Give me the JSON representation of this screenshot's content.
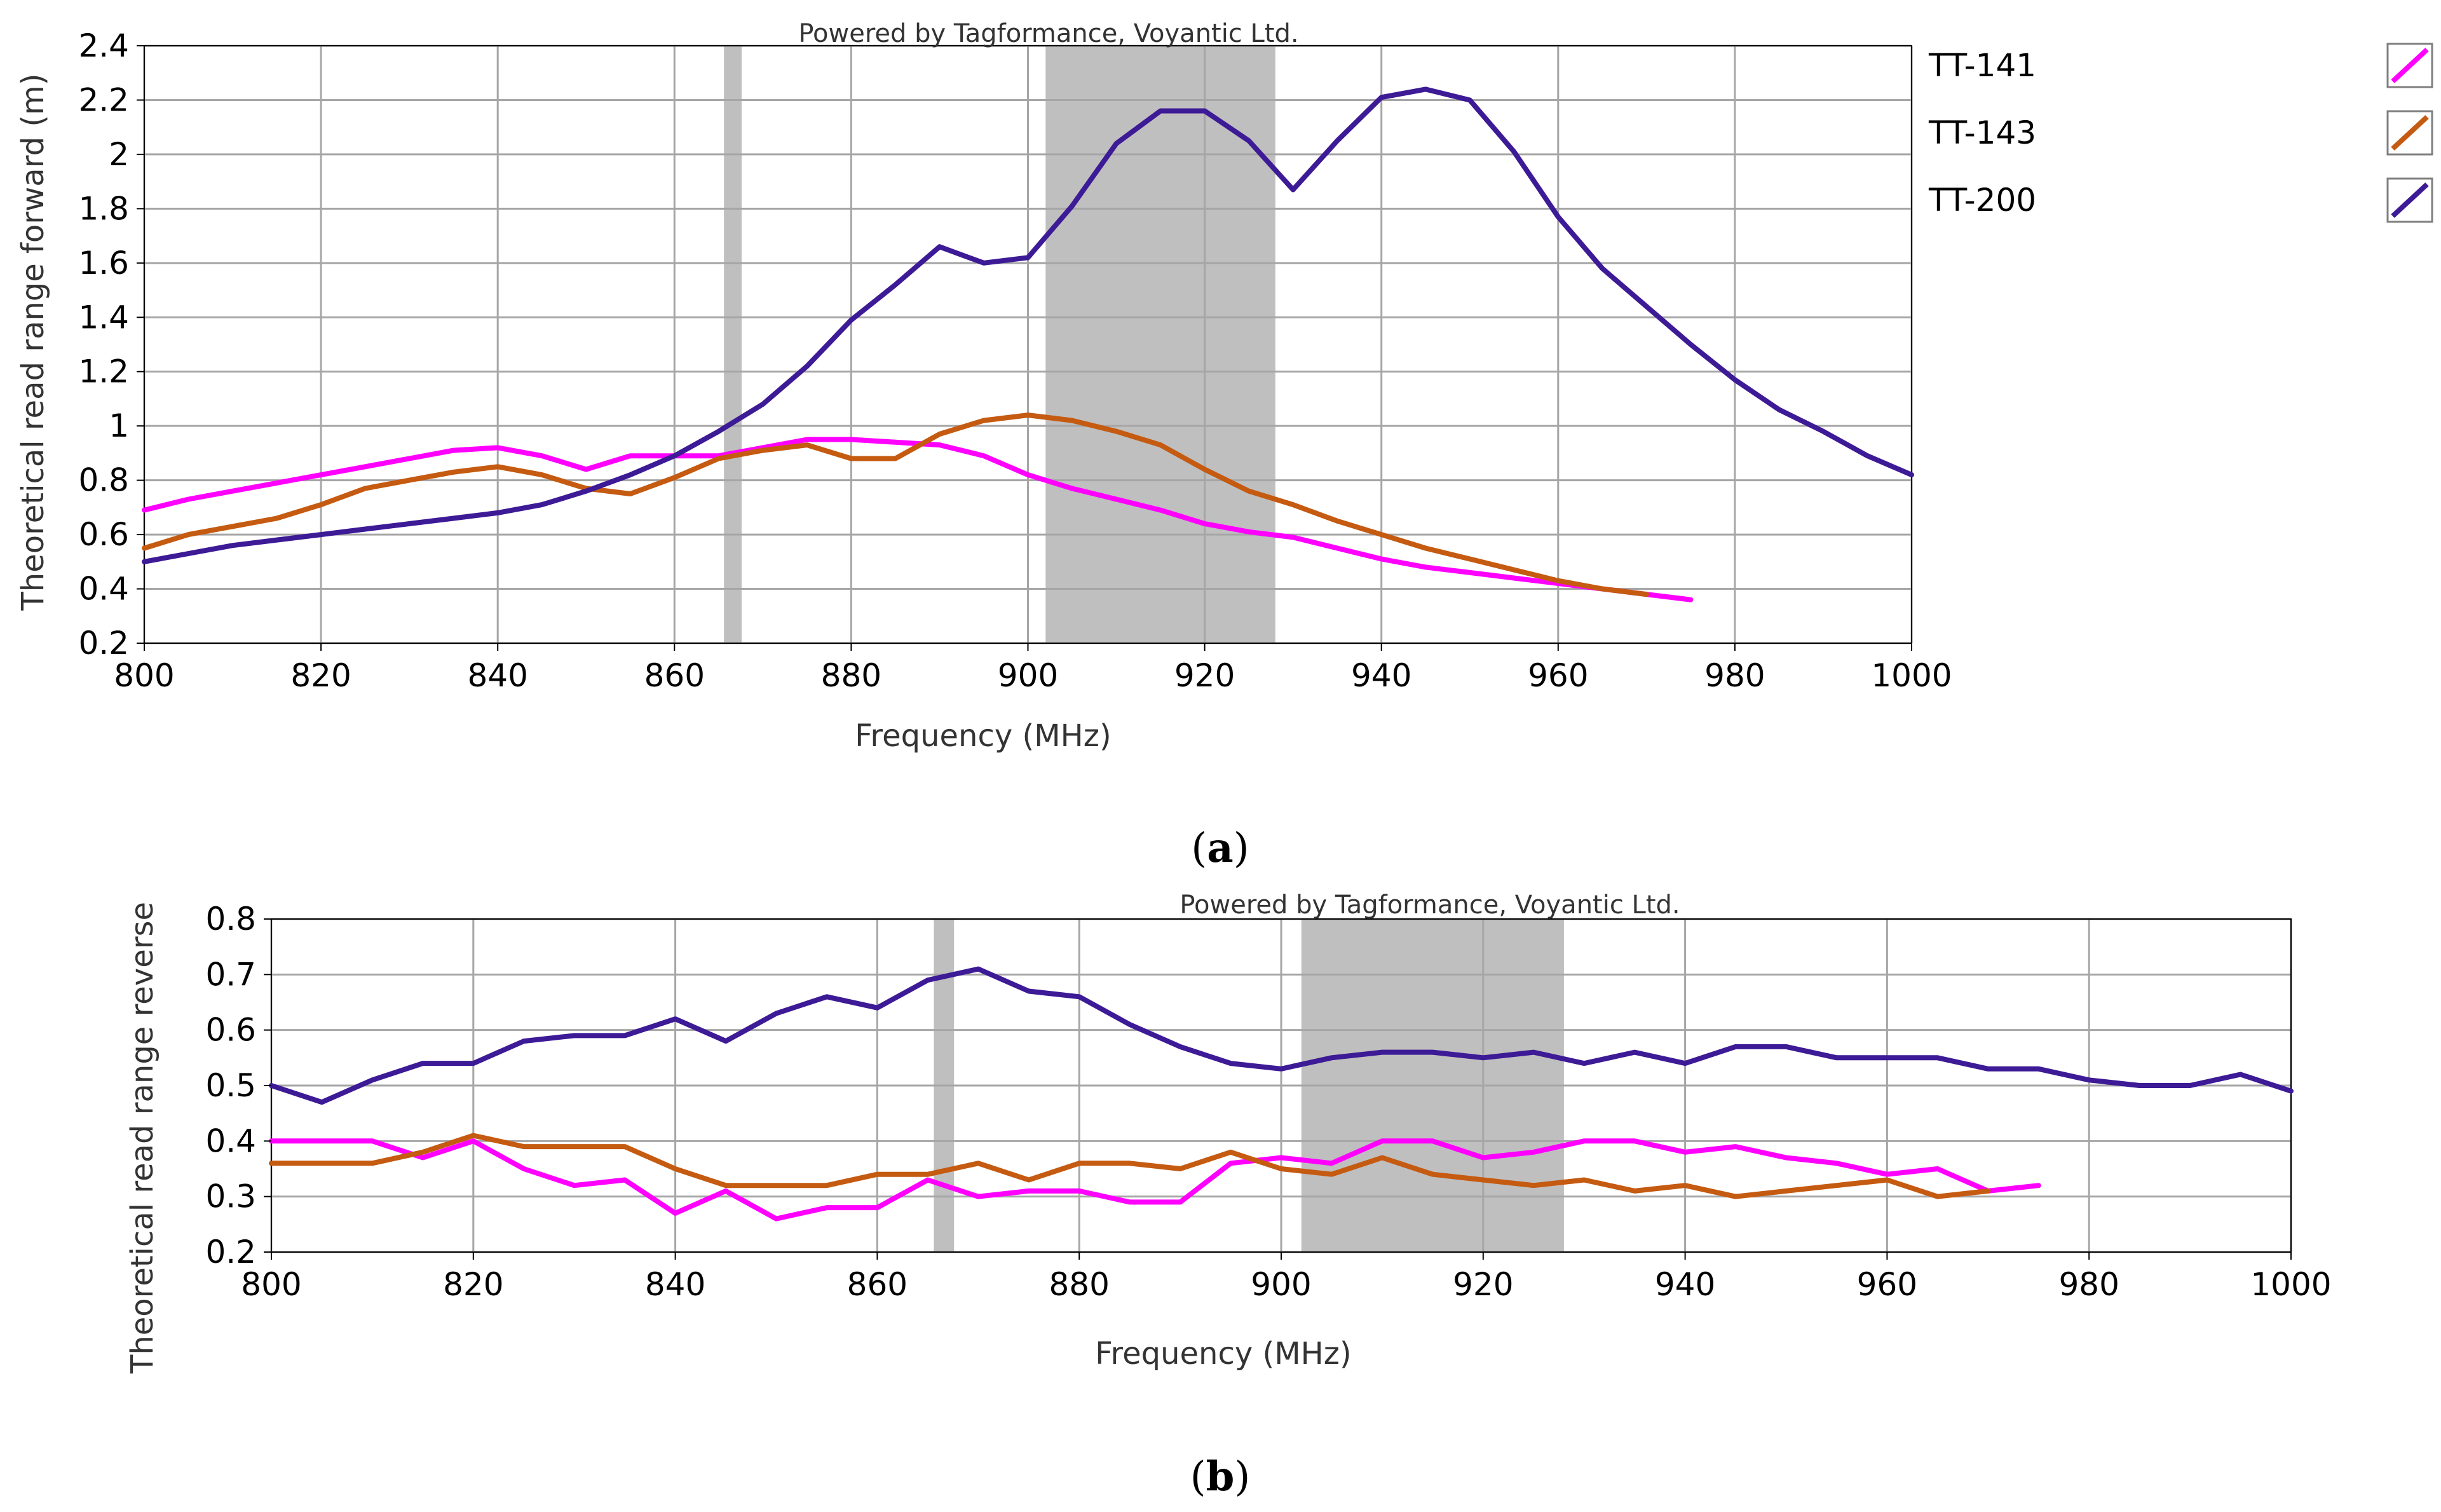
{
  "chart_data": [
    {
      "type": "line",
      "panel": "a",
      "caption": "a",
      "watermark": "Powered by Tagformance, Voyantic Ltd.",
      "xlabel": "Frequency (MHz)",
      "ylabel": "Theoretical read range forward (m)",
      "xlim": [
        800,
        1000
      ],
      "ylim": [
        0.2,
        2.4
      ],
      "xticks": [
        800,
        820,
        840,
        860,
        880,
        900,
        920,
        940,
        960,
        980,
        1000
      ],
      "yticks": [
        0.2,
        0.4,
        0.6,
        0.8,
        1,
        1.2,
        1.4,
        1.6,
        1.8,
        2,
        2.2,
        2.4
      ],
      "ytick_labels": [
        "0.2",
        "0.4",
        "0.6",
        "0.8",
        "1",
        "1.2",
        "1.4",
        "1.6",
        "1.8",
        "2",
        "2.2",
        "2.4"
      ],
      "grid": true,
      "legend_position": "right",
      "shaded_bands": [
        [
          865.6,
          867.6
        ],
        [
          902,
          928
        ]
      ],
      "series": [
        {
          "name": "TT-141",
          "color": "#ff00ff",
          "x": [
            800,
            805,
            810,
            815,
            820,
            825,
            830,
            835,
            840,
            845,
            850,
            855,
            860,
            865,
            870,
            875,
            880,
            885,
            890,
            895,
            900,
            905,
            910,
            915,
            920,
            925,
            930,
            935,
            940,
            945,
            950,
            955,
            960,
            965,
            970,
            975
          ],
          "y": [
            0.69,
            0.73,
            0.76,
            0.79,
            0.82,
            0.85,
            0.88,
            0.91,
            0.92,
            0.89,
            0.84,
            0.89,
            0.89,
            0.89,
            0.92,
            0.95,
            0.95,
            0.94,
            0.93,
            0.89,
            0.82,
            0.77,
            0.73,
            0.69,
            0.64,
            0.61,
            0.59,
            0.55,
            0.51,
            0.48,
            0.46,
            0.44,
            0.42,
            0.4,
            0.38,
            0.36
          ]
        },
        {
          "name": "TT-143",
          "color": "#c55a11",
          "x": [
            800,
            805,
            810,
            815,
            820,
            825,
            830,
            835,
            840,
            845,
            850,
            855,
            860,
            865,
            870,
            875,
            880,
            885,
            890,
            895,
            900,
            905,
            910,
            915,
            920,
            925,
            930,
            935,
            940,
            945,
            950,
            955,
            960,
            965,
            970
          ],
          "y": [
            0.55,
            0.6,
            0.63,
            0.66,
            0.71,
            0.77,
            0.8,
            0.83,
            0.85,
            0.82,
            0.77,
            0.75,
            0.81,
            0.88,
            0.91,
            0.93,
            0.88,
            0.88,
            0.97,
            1.02,
            1.04,
            1.02,
            0.98,
            0.93,
            0.84,
            0.76,
            0.71,
            0.65,
            0.6,
            0.55,
            0.51,
            0.47,
            0.43,
            0.4,
            0.38
          ]
        },
        {
          "name": "TT-200",
          "color": "#3d1a96",
          "x": [
            800,
            805,
            810,
            815,
            820,
            825,
            830,
            835,
            840,
            845,
            850,
            855,
            860,
            865,
            870,
            875,
            880,
            885,
            890,
            895,
            900,
            905,
            910,
            915,
            920,
            925,
            930,
            935,
            940,
            945,
            950,
            955,
            960,
            965,
            970,
            975,
            980,
            985,
            990,
            995,
            1000
          ],
          "y": [
            0.5,
            0.53,
            0.56,
            0.58,
            0.6,
            0.62,
            0.64,
            0.66,
            0.68,
            0.71,
            0.76,
            0.82,
            0.89,
            0.98,
            1.08,
            1.22,
            1.39,
            1.52,
            1.66,
            1.6,
            1.62,
            1.81,
            2.04,
            2.16,
            2.16,
            2.05,
            1.87,
            2.05,
            2.21,
            2.24,
            2.2,
            2.01,
            1.77,
            1.58,
            1.44,
            1.3,
            1.17,
            1.06,
            0.98,
            0.89,
            0.82
          ]
        }
      ]
    },
    {
      "type": "line",
      "panel": "b",
      "caption": "b",
      "watermark": "Powered by Tagformance, Voyantic Ltd.",
      "xlabel": "Frequency (MHz)",
      "ylabel": "Theoretical read range reverse",
      "xlim": [
        800,
        1000
      ],
      "ylim": [
        0.2,
        0.8
      ],
      "xticks": [
        800,
        820,
        840,
        860,
        880,
        900,
        920,
        940,
        960,
        980,
        1000
      ],
      "yticks": [
        0.2,
        0.3,
        0.4,
        0.5,
        0.6,
        0.7,
        0.8
      ],
      "ytick_labels": [
        "0.2",
        "0.3",
        "0.4",
        "0.5",
        "0.6",
        "0.7",
        "0.8"
      ],
      "grid": true,
      "shaded_bands": [
        [
          865.6,
          867.6
        ],
        [
          902,
          928
        ]
      ],
      "series": [
        {
          "name": "TT-141",
          "color": "#ff00ff",
          "x": [
            800,
            805,
            810,
            815,
            820,
            825,
            830,
            835,
            840,
            845,
            850,
            855,
            860,
            865,
            870,
            875,
            880,
            885,
            890,
            895,
            900,
            905,
            910,
            915,
            920,
            925,
            930,
            935,
            940,
            945,
            950,
            955,
            960,
            965,
            970,
            975
          ],
          "y": [
            0.4,
            0.4,
            0.4,
            0.37,
            0.4,
            0.35,
            0.32,
            0.33,
            0.27,
            0.31,
            0.26,
            0.28,
            0.28,
            0.33,
            0.3,
            0.31,
            0.31,
            0.29,
            0.29,
            0.36,
            0.37,
            0.36,
            0.4,
            0.4,
            0.37,
            0.38,
            0.4,
            0.4,
            0.38,
            0.39,
            0.37,
            0.36,
            0.34,
            0.35,
            0.31,
            0.32
          ]
        },
        {
          "name": "TT-143",
          "color": "#c55a11",
          "x": [
            800,
            805,
            810,
            815,
            820,
            825,
            830,
            835,
            840,
            845,
            850,
            855,
            860,
            865,
            870,
            875,
            880,
            885,
            890,
            895,
            900,
            905,
            910,
            915,
            920,
            925,
            930,
            935,
            940,
            945,
            950,
            955,
            960,
            965,
            970
          ],
          "y": [
            0.36,
            0.36,
            0.36,
            0.38,
            0.41,
            0.39,
            0.39,
            0.39,
            0.35,
            0.32,
            0.32,
            0.32,
            0.34,
            0.34,
            0.36,
            0.33,
            0.36,
            0.36,
            0.35,
            0.38,
            0.35,
            0.34,
            0.37,
            0.34,
            0.33,
            0.32,
            0.33,
            0.31,
            0.32,
            0.3,
            0.31,
            0.32,
            0.33,
            0.3,
            0.31
          ]
        },
        {
          "name": "TT-200",
          "color": "#3d1a96",
          "x": [
            800,
            805,
            810,
            815,
            820,
            825,
            830,
            835,
            840,
            845,
            850,
            855,
            860,
            865,
            870,
            875,
            880,
            885,
            890,
            895,
            900,
            905,
            910,
            915,
            920,
            925,
            930,
            935,
            940,
            945,
            950,
            955,
            960,
            965,
            970,
            975,
            980,
            985,
            990,
            995,
            1000
          ],
          "y": [
            0.5,
            0.47,
            0.51,
            0.54,
            0.54,
            0.58,
            0.59,
            0.59,
            0.62,
            0.58,
            0.63,
            0.66,
            0.64,
            0.69,
            0.71,
            0.67,
            0.66,
            0.61,
            0.57,
            0.54,
            0.53,
            0.55,
            0.56,
            0.56,
            0.55,
            0.56,
            0.54,
            0.56,
            0.54,
            0.57,
            0.57,
            0.55,
            0.55,
            0.55,
            0.53,
            0.53,
            0.51,
            0.5,
            0.5,
            0.52,
            0.49
          ]
        }
      ]
    }
  ]
}
